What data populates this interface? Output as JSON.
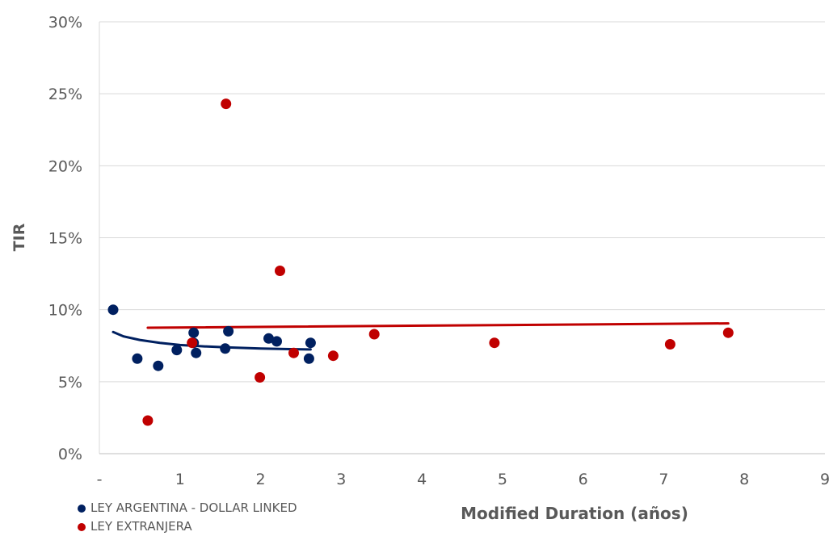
{
  "chart_data": {
    "type": "scatter",
    "title": "",
    "xlabel": "Modified Duration (años)",
    "ylabel": "TIR",
    "x_ticks": [
      "-",
      "1",
      "2",
      "3",
      "4",
      "5",
      "6",
      "7",
      "8",
      "9"
    ],
    "y_ticks": [
      "0%",
      "5%",
      "10%",
      "15%",
      "20%",
      "25%",
      "30%"
    ],
    "xlim": [
      0,
      9
    ],
    "ylim": [
      0,
      30
    ],
    "grid": "horizontal",
    "legend_position": "bottom-left",
    "series": [
      {
        "name": "LEY ARGENTINA - DOLLAR LINKED",
        "color": "#002060",
        "points": [
          [
            0.17,
            10.0
          ],
          [
            0.47,
            6.6
          ],
          [
            0.73,
            6.1
          ],
          [
            0.96,
            7.2
          ],
          [
            1.17,
            8.4
          ],
          [
            1.17,
            7.7
          ],
          [
            1.2,
            7.0
          ],
          [
            1.56,
            7.3
          ],
          [
            1.6,
            8.5
          ],
          [
            2.1,
            8.0
          ],
          [
            2.2,
            7.8
          ],
          [
            2.6,
            6.6
          ],
          [
            2.62,
            7.7
          ]
        ],
        "trendline": [
          [
            0.17,
            8.45
          ],
          [
            0.3,
            8.15
          ],
          [
            0.5,
            7.9
          ],
          [
            0.75,
            7.7
          ],
          [
            1.0,
            7.55
          ],
          [
            1.3,
            7.45
          ],
          [
            1.6,
            7.38
          ],
          [
            2.0,
            7.3
          ],
          [
            2.3,
            7.27
          ],
          [
            2.62,
            7.24
          ]
        ]
      },
      {
        "name": "LEY EXTRANJERA",
        "color": "#C00000",
        "points": [
          [
            0.6,
            2.3
          ],
          [
            1.15,
            7.7
          ],
          [
            1.57,
            24.3
          ],
          [
            1.99,
            5.3
          ],
          [
            2.24,
            12.7
          ],
          [
            2.41,
            7.0
          ],
          [
            2.9,
            6.8
          ],
          [
            3.41,
            8.3
          ],
          [
            4.9,
            7.7
          ],
          [
            7.08,
            7.6
          ],
          [
            7.8,
            8.4
          ]
        ],
        "trendline": [
          [
            0.6,
            8.75
          ],
          [
            7.8,
            9.05
          ]
        ]
      }
    ]
  }
}
